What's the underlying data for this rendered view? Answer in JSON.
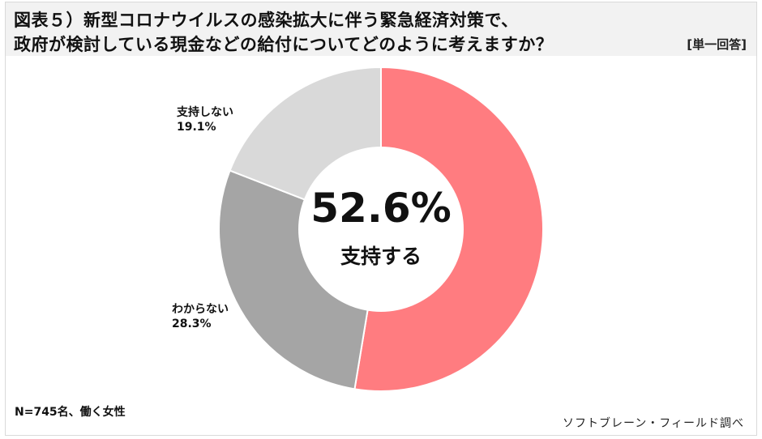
{
  "header": {
    "title_line1": "図表５）新型コロナウイルスの感染拡大に伴う緊急経済対策で、",
    "title_line2": "政府が検討している現金などの給付についてどのように考えますか？",
    "answer_type": "[単一回答]"
  },
  "center": {
    "value": "52.6%",
    "label": "支持する"
  },
  "labels": {
    "not_support_name": "支持しない",
    "not_support_value": "19.1%",
    "unknown_name": "わからない",
    "unknown_value": "28.3%"
  },
  "footer": {
    "sample": "N=745名、働く女性",
    "source": "ソフトブレーン・フィールド調べ"
  },
  "colors": {
    "support": "#FF7C80",
    "unknown": "#A5A5A5",
    "not_support": "#D9D9D9"
  },
  "chart_data": {
    "type": "pie",
    "variant": "donut",
    "title": "図表５）新型コロナウイルスの感染拡大に伴う緊急経済対策で、政府が検討している現金などの給付についてどのように考えますか？",
    "subtitle": "[単一回答]",
    "categories": [
      "支持する",
      "わからない",
      "支持しない"
    ],
    "values": [
      52.6,
      28.3,
      19.1
    ],
    "unit": "%",
    "colors": [
      "#FF7C80",
      "#A5A5A5",
      "#D9D9D9"
    ],
    "start_angle": "12 o'clock, clockwise",
    "center_annotation": "52.6% 支持する",
    "annotations": [
      "N=745名、働く女性",
      "ソフトブレーン・フィールド調べ"
    ]
  }
}
